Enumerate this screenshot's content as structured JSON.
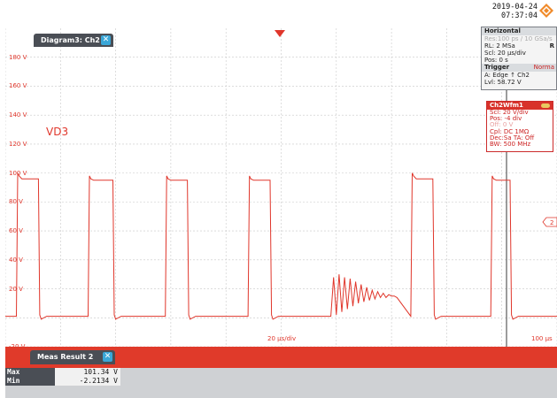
{
  "header": {
    "date": "2019-04-24",
    "time": "07:37:04",
    "logo_icon": "rohde-schwarz-logo-icon"
  },
  "diagram": {
    "tab_title": "Diagram3: Ch2",
    "close_glyph": "✕",
    "trace_label": "VD3",
    "y_ticks": [
      "180 V",
      "160 V",
      "140 V",
      "120 V",
      "100 V",
      "80 V",
      "60 V",
      "40 V",
      "20 V",
      "",
      "-20 V"
    ],
    "x_ticks": [
      "20 µs/div",
      "100 µs"
    ],
    "side_marker": "2"
  },
  "horizontal": {
    "title": "Horizontal",
    "res": "Res:100 ps / 10 GSa/s",
    "rl": "RL: 2 MSa",
    "rl_flag": "R",
    "scale": "Scl: 20 µs/div",
    "pos": "Pos: 0 s"
  },
  "trigger": {
    "title": "Trigger",
    "mode": "Norma",
    "type": "A:  Edge  ↑  Ch2",
    "level": "Lvl: 58.72 V"
  },
  "channel": {
    "title": "Ch2Wfm1",
    "scale": "Scl: 20 V/div",
    "pos": "Pos: -4 div",
    "offset": "Off: 0 V",
    "coupling": "Cpl: DC 1MΩ",
    "dec": "Dec:Sa    TA: Off",
    "bw": "BW: 500 MHz"
  },
  "meas": {
    "tab_title": "Meas Result 2",
    "close_glyph": "✕",
    "rows": [
      {
        "label": "Max",
        "value": "101.34 V"
      },
      {
        "label": "Min",
        "value": "-2.2134 V"
      }
    ]
  },
  "colors": {
    "trace": "#e0362b",
    "grid": "#c8c8c8",
    "panel_bg": "#cfd1d4",
    "meas_strip": "#e03a2a"
  },
  "chart_data": {
    "type": "line",
    "xlabel": "",
    "ylabel": "",
    "units": {
      "x": "µs",
      "y": "V"
    },
    "xlim": [
      0,
      200
    ],
    "ylim": [
      -20,
      200
    ],
    "grid": true,
    "series": [
      {
        "x": [
          0,
          4,
          4.5,
          5,
          6,
          12,
          12.5,
          13,
          15,
          30,
          30.5,
          31,
          32,
          39,
          39.5,
          40,
          42,
          58,
          58.5,
          59,
          60,
          66,
          66.5,
          67,
          69,
          88,
          88.5,
          89,
          90,
          96,
          96.5,
          97,
          99,
          118,
          119,
          120,
          121,
          122,
          123,
          124,
          125,
          126,
          127,
          128,
          129,
          130,
          131,
          132,
          133,
          134,
          135,
          136,
          137,
          138,
          139,
          140,
          141,
          142,
          147,
          147.5,
          148,
          149,
          155,
          155.5,
          156,
          158,
          176,
          176.5,
          177,
          178,
          183,
          183.5,
          184,
          186,
          200
        ],
        "y": [
          1,
          1,
          100,
          98,
          96,
          96,
          2,
          -1,
          1,
          1,
          98,
          96,
          95,
          95,
          2,
          -1,
          1,
          1,
          98,
          96,
          95,
          95,
          2,
          -1,
          1,
          1,
          98,
          96,
          95,
          95,
          2,
          -1,
          1,
          1,
          28,
          2,
          30,
          4,
          28,
          6,
          27,
          8,
          25,
          10,
          23,
          11,
          21,
          12,
          19,
          13,
          18,
          14,
          17,
          14,
          16,
          15,
          15,
          14,
          1,
          100,
          98,
          96,
          96,
          2,
          -1,
          1,
          1,
          98,
          96,
          95,
          95,
          2,
          -1,
          1,
          1
        ]
      }
    ]
  }
}
